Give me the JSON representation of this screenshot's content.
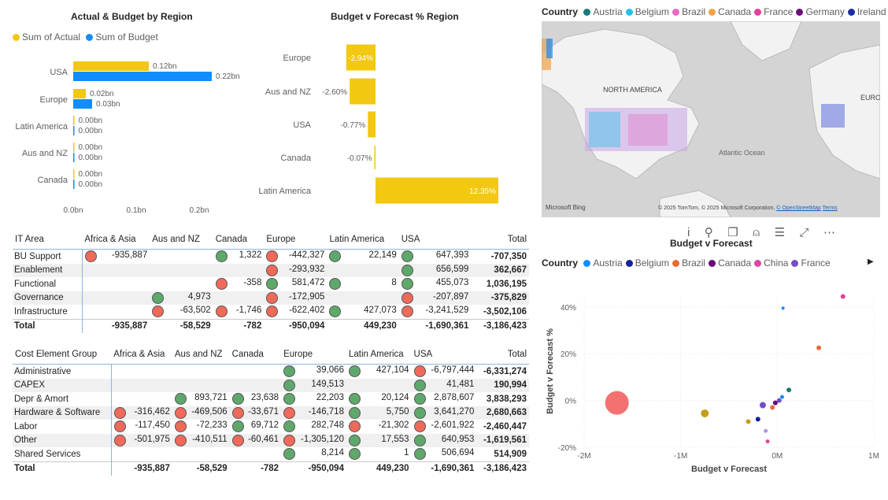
{
  "bar_chart": {
    "title": "Actual & Budget by Region",
    "legend": [
      {
        "name": "Sum of Actual",
        "color": "#f2c811"
      },
      {
        "name": "Sum of Budget",
        "color": "#118dff"
      }
    ],
    "chart_data": {
      "type": "bar",
      "categories": [
        "USA",
        "Europe",
        "Latin America",
        "Aus and NZ",
        "Canada"
      ],
      "series": [
        {
          "name": "Sum of Actual",
          "values": [
            0.12,
            0.02,
            0.0,
            0.0,
            0.0
          ],
          "labels": [
            "0.12bn",
            "0.02bn",
            "0.00bn",
            "0.00bn",
            "0.00bn"
          ]
        },
        {
          "name": "Sum of Budget",
          "values": [
            0.22,
            0.03,
            0.0,
            0.0,
            0.0
          ],
          "labels": [
            "0.22bn",
            "0.03bn",
            "0.00bn",
            "0.00bn",
            "0.00bn"
          ]
        }
      ],
      "x_ticks": [
        "0.0bn",
        "0.1bn",
        "0.2bn"
      ],
      "xlim": [
        0,
        0.25
      ]
    }
  },
  "forecast_chart": {
    "title": "Budget v Forecast % Region",
    "chart_data": {
      "type": "bar",
      "categories": [
        "Europe",
        "Aus and NZ",
        "USA",
        "Canada",
        "Latin America"
      ],
      "values": [
        -2.94,
        -2.6,
        -0.77,
        -0.07,
        12.35
      ],
      "labels": [
        "-2.94%",
        "-2.60%",
        "-0.77%",
        "-0.07%",
        "12.35%"
      ],
      "color": "#f2c811"
    }
  },
  "map": {
    "legend_title": "Country",
    "legend": [
      {
        "name": "Austria",
        "color": "#1b7a77"
      },
      {
        "name": "Belgium",
        "color": "#22c2e8"
      },
      {
        "name": "Brazil",
        "color": "#e56ac3"
      },
      {
        "name": "Canada",
        "color": "#f0a34a"
      },
      {
        "name": "France",
        "color": "#e0409b"
      },
      {
        "name": "Germany",
        "color": "#6a0f7a"
      },
      {
        "name": "Ireland",
        "color": "#1a2ea0"
      }
    ],
    "labels": {
      "north_america": "NORTH AMERICA",
      "atlantic": "Atlantic Ocean",
      "euro": "EURO"
    },
    "bing": "Microsoft Bing",
    "copyright": "© 2025 TomTom, © 2025 Microsoft Corporation,",
    "osm": "© OpenStreetMap",
    "terms": "Terms"
  },
  "it_matrix": {
    "headers": [
      "IT Area",
      "Africa & Asia",
      "Aus and NZ",
      "Canada",
      "Europe",
      "Latin America",
      "USA",
      "Total"
    ],
    "rows": [
      {
        "label": "BU Support",
        "cells": [
          {
            "v": "-935,887",
            "i": "red"
          },
          {
            "v": "",
            "i": ""
          },
          {
            "v": "1,322",
            "i": "green"
          },
          {
            "v": "-442,327",
            "i": "red"
          },
          {
            "v": "22,149",
            "i": "green"
          },
          {
            "v": "647,393",
            "i": "green"
          }
        ],
        "total": "-707,350"
      },
      {
        "label": "Enablement",
        "cells": [
          {
            "v": "",
            "i": ""
          },
          {
            "v": "",
            "i": ""
          },
          {
            "v": "",
            "i": ""
          },
          {
            "v": "-293,932",
            "i": "red"
          },
          {
            "v": "",
            "i": ""
          },
          {
            "v": "656,599",
            "i": "green"
          }
        ],
        "total": "362,667"
      },
      {
        "label": "Functional",
        "cells": [
          {
            "v": "",
            "i": ""
          },
          {
            "v": "",
            "i": ""
          },
          {
            "v": "-358",
            "i": "red"
          },
          {
            "v": "581,472",
            "i": "green"
          },
          {
            "v": "8",
            "i": "green"
          },
          {
            "v": "455,073",
            "i": "green"
          }
        ],
        "total": "1,036,195"
      },
      {
        "label": "Governance",
        "cells": [
          {
            "v": "",
            "i": ""
          },
          {
            "v": "4,973",
            "i": "green"
          },
          {
            "v": "",
            "i": ""
          },
          {
            "v": "-172,905",
            "i": "red"
          },
          {
            "v": "",
            "i": ""
          },
          {
            "v": "-207,897",
            "i": "red"
          }
        ],
        "total": "-375,829"
      },
      {
        "label": "Infrastructure",
        "cells": [
          {
            "v": "",
            "i": ""
          },
          {
            "v": "-63,502",
            "i": "red"
          },
          {
            "v": "-1,746",
            "i": "red"
          },
          {
            "v": "-622,402",
            "i": "red"
          },
          {
            "v": "427,073",
            "i": "green"
          },
          {
            "v": "-3,241,529",
            "i": "red"
          }
        ],
        "total": "-3,502,106"
      }
    ],
    "total_label": "Total",
    "totals": [
      "-935,887",
      "-58,529",
      "-782",
      "-950,094",
      "449,230",
      "-1,690,361",
      "-3,186,423"
    ]
  },
  "cost_matrix": {
    "headers": [
      "Cost Element Group",
      "Africa & Asia",
      "Aus and NZ",
      "Canada",
      "Europe",
      "Latin America",
      "USA",
      "Total"
    ],
    "rows": [
      {
        "label": "Administrative",
        "cells": [
          {
            "v": "",
            "i": ""
          },
          {
            "v": "",
            "i": ""
          },
          {
            "v": "",
            "i": ""
          },
          {
            "v": "39,066",
            "i": "green"
          },
          {
            "v": "427,104",
            "i": "green"
          },
          {
            "v": "-6,797,444",
            "i": "red"
          }
        ],
        "total": "-6,331,274"
      },
      {
        "label": "CAPEX",
        "cells": [
          {
            "v": "",
            "i": ""
          },
          {
            "v": "",
            "i": ""
          },
          {
            "v": "",
            "i": ""
          },
          {
            "v": "149,513",
            "i": "green"
          },
          {
            "v": "",
            "i": ""
          },
          {
            "v": "41,481",
            "i": "green"
          }
        ],
        "total": "190,994"
      },
      {
        "label": "Depr & Amort",
        "cells": [
          {
            "v": "",
            "i": ""
          },
          {
            "v": "893,721",
            "i": "green"
          },
          {
            "v": "23,638",
            "i": "green"
          },
          {
            "v": "22,203",
            "i": "green"
          },
          {
            "v": "20,124",
            "i": "green"
          },
          {
            "v": "2,878,607",
            "i": "green"
          }
        ],
        "total": "3,838,293"
      },
      {
        "label": "Hardware & Software",
        "cells": [
          {
            "v": "-316,462",
            "i": "red"
          },
          {
            "v": "-469,506",
            "i": "red"
          },
          {
            "v": "-33,671",
            "i": "red"
          },
          {
            "v": "-146,718",
            "i": "red"
          },
          {
            "v": "5,750",
            "i": "green"
          },
          {
            "v": "3,641,270",
            "i": "green"
          }
        ],
        "total": "2,680,663"
      },
      {
        "label": "Labor",
        "cells": [
          {
            "v": "-117,450",
            "i": "red"
          },
          {
            "v": "-72,233",
            "i": "red"
          },
          {
            "v": "69,712",
            "i": "green"
          },
          {
            "v": "282,748",
            "i": "green"
          },
          {
            "v": "-21,302",
            "i": "red"
          },
          {
            "v": "-2,601,922",
            "i": "red"
          }
        ],
        "total": "-2,460,447"
      },
      {
        "label": "Other",
        "cells": [
          {
            "v": "-501,975",
            "i": "red"
          },
          {
            "v": "-410,511",
            "i": "red"
          },
          {
            "v": "-60,461",
            "i": "red"
          },
          {
            "v": "-1,305,120",
            "i": "red"
          },
          {
            "v": "17,553",
            "i": "green"
          },
          {
            "v": "640,953",
            "i": "green"
          }
        ],
        "total": "-1,619,561"
      },
      {
        "label": "Shared Services",
        "cells": [
          {
            "v": "",
            "i": ""
          },
          {
            "v": "",
            "i": ""
          },
          {
            "v": "",
            "i": ""
          },
          {
            "v": "8,214",
            "i": "green"
          },
          {
            "v": "1",
            "i": "green"
          },
          {
            "v": "506,694",
            "i": "green"
          }
        ],
        "total": "514,909"
      }
    ],
    "total_label": "Total",
    "totals": [
      "-935,887",
      "-58,529",
      "-782",
      "-950,094",
      "449,230",
      "-1,690,361",
      "-3,186,423"
    ]
  },
  "scatter": {
    "title": "Budget v Forecast",
    "legend_title": "Country",
    "legend": [
      {
        "name": "Austria",
        "color": "#118dff"
      },
      {
        "name": "Belgium",
        "color": "#12239e"
      },
      {
        "name": "Brazil",
        "color": "#e66c37"
      },
      {
        "name": "Canada",
        "color": "#6b007b"
      },
      {
        "name": "China",
        "color": "#e044a7"
      },
      {
        "name": "France",
        "color": "#744ec2"
      }
    ],
    "chart_data": {
      "type": "scatter",
      "xlabel": "Budget v Forecast",
      "ylabel": "Budget v Forecast %",
      "x_ticks": [
        "-2M",
        "-1M",
        "0M",
        "1M"
      ],
      "y_ticks": [
        "40%",
        "20%",
        "0%",
        "-20%"
      ],
      "xlim": [
        -2000000,
        1000000
      ],
      "ylim": [
        -20,
        45
      ],
      "points": [
        {
          "x": -1660000,
          "y": -1,
          "r": 15,
          "color": "#f47171"
        },
        {
          "x": -750000,
          "y": -5.5,
          "r": 5,
          "color": "#c2a018"
        },
        {
          "x": -300000,
          "y": -9,
          "r": 3,
          "color": "#c2a018"
        },
        {
          "x": -200000,
          "y": -8,
          "r": 3,
          "color": "#12239e"
        },
        {
          "x": -150000,
          "y": -2,
          "r": 4,
          "color": "#744ec2"
        },
        {
          "x": -100000,
          "y": -17.5,
          "r": 2.5,
          "color": "#e044a7"
        },
        {
          "x": -120000,
          "y": -13,
          "r": 2.5,
          "color": "#b794e3"
        },
        {
          "x": -50000,
          "y": -3,
          "r": 3,
          "color": "#e66c37"
        },
        {
          "x": -20000,
          "y": -1,
          "r": 3,
          "color": "#6b007b"
        },
        {
          "x": 20000,
          "y": 0,
          "r": 3,
          "color": "#744ec2"
        },
        {
          "x": 50000,
          "y": 1.5,
          "r": 2.5,
          "color": "#118dff"
        },
        {
          "x": 120000,
          "y": 4.5,
          "r": 3,
          "color": "#1b7a77"
        },
        {
          "x": 60000,
          "y": 39.5,
          "r": 2,
          "color": "#118dff"
        },
        {
          "x": 430000,
          "y": 22.5,
          "r": 3,
          "color": "#e66c37"
        },
        {
          "x": 680000,
          "y": 44.5,
          "r": 3,
          "color": "#e0409b"
        }
      ]
    }
  }
}
